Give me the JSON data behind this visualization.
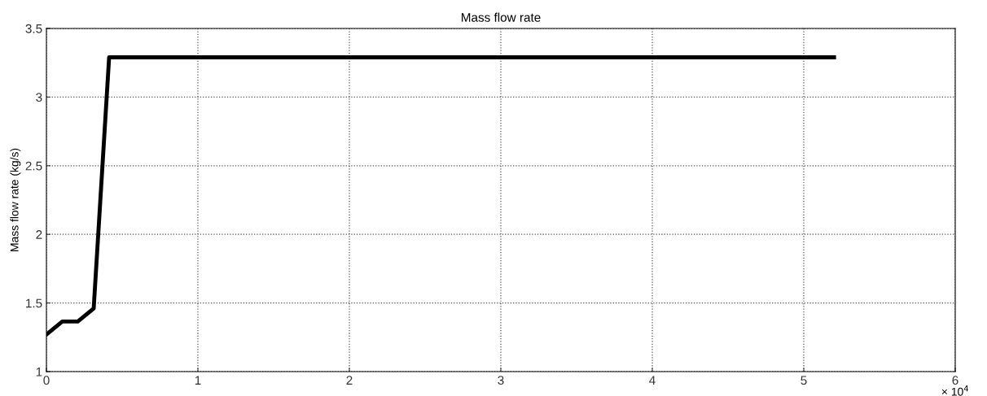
{
  "chart_data": {
    "type": "line",
    "title": "Mass flow rate",
    "ylabel": "Mass flow rate (kg/s)",
    "x": [
      0,
      0.105,
      0.207,
      0.312,
      0.414,
      5.2
    ],
    "series": [
      {
        "color": "#000000",
        "values": [
          1.27,
          1.365,
          1.365,
          1.46,
          3.29,
          3.29
        ]
      }
    ],
    "xlim": [
      0,
      6
    ],
    "xticks": [
      0,
      1,
      2,
      3,
      4,
      5,
      6
    ],
    "ylim": [
      1,
      3.5
    ],
    "yticks": [
      1,
      1.5,
      2,
      2.5,
      3,
      3.5
    ],
    "annotations": [
      "× 10$^{4}$"
    ],
    "grid": true,
    "line_style": "solid",
    "marker": "none"
  }
}
